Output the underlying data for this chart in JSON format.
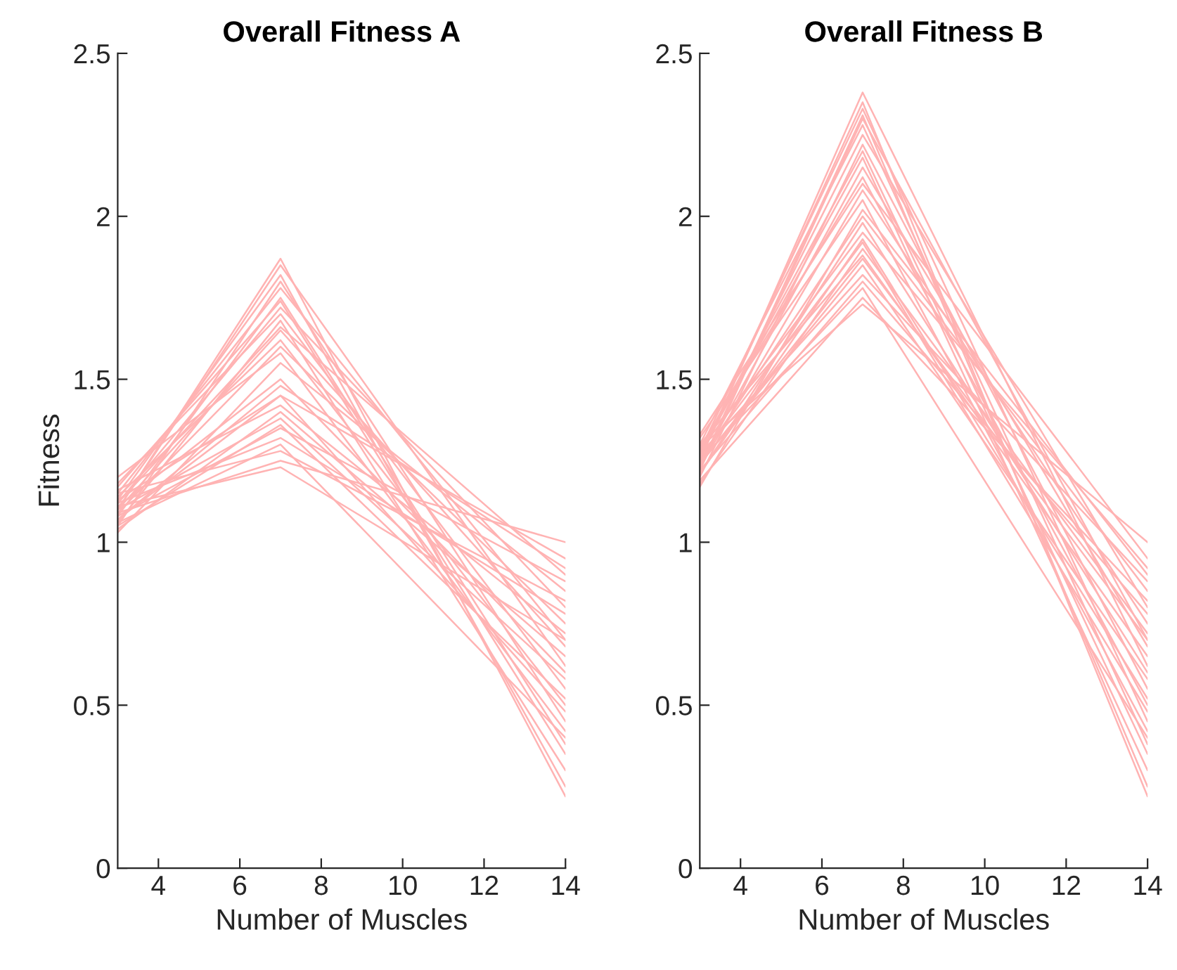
{
  "chart_data": [
    {
      "type": "line",
      "title": "Overall Fitness A",
      "xlabel": "Number of Muscles",
      "ylabel": "Fitness",
      "x": [
        3,
        7,
        14
      ],
      "xlim": [
        3,
        14
      ],
      "xticks": [
        4,
        6,
        8,
        10,
        12,
        14
      ],
      "ylim": [
        0,
        2.5
      ],
      "yticks": [
        0,
        0.5,
        1,
        1.5,
        2,
        2.5
      ],
      "grid": false,
      "line_style": "solid",
      "series": [
        {
          "color": "#ffb3b3",
          "values": [
            1.1,
            1.85,
            0.62
          ]
        },
        {
          "color": "#ffb3b3",
          "values": [
            1.05,
            1.8,
            0.45
          ]
        },
        {
          "color": "#ffb3b3",
          "values": [
            1.15,
            1.78,
            0.7
          ]
        },
        {
          "color": "#ffb3b3",
          "values": [
            1.08,
            1.75,
            0.38
          ]
        },
        {
          "color": "#ffb3b3",
          "values": [
            1.12,
            1.72,
            0.8
          ]
        },
        {
          "color": "#ffb3b3",
          "values": [
            1.18,
            1.7,
            0.55
          ]
        },
        {
          "color": "#ffb3b3",
          "values": [
            1.06,
            1.68,
            0.3
          ]
        },
        {
          "color": "#ffb3b3",
          "values": [
            1.1,
            1.65,
            0.68
          ]
        },
        {
          "color": "#ffb3b3",
          "values": [
            1.14,
            1.62,
            0.5
          ]
        },
        {
          "color": "#ffb3b3",
          "values": [
            1.09,
            1.6,
            0.75
          ]
        },
        {
          "color": "#ffb3b3",
          "values": [
            1.2,
            1.58,
            0.42
          ]
        },
        {
          "color": "#ffb3b3",
          "values": [
            1.03,
            1.55,
            0.85
          ]
        },
        {
          "color": "#ffb3b3",
          "values": [
            1.11,
            1.5,
            0.6
          ]
        },
        {
          "color": "#ffb3b3",
          "values": [
            1.07,
            1.48,
            0.92
          ]
        },
        {
          "color": "#ffb3b3",
          "values": [
            1.13,
            1.45,
            0.48
          ]
        },
        {
          "color": "#ffb3b3",
          "values": [
            1.16,
            1.42,
            0.72
          ]
        },
        {
          "color": "#ffb3b3",
          "values": [
            1.04,
            1.4,
            0.65
          ]
        },
        {
          "color": "#ffb3b3",
          "values": [
            1.1,
            1.38,
            0.58
          ]
        },
        {
          "color": "#ffb3b3",
          "values": [
            1.08,
            1.35,
            0.88
          ]
        },
        {
          "color": "#ffb3b3",
          "values": [
            1.12,
            1.32,
            0.78
          ]
        },
        {
          "color": "#ffb3b3",
          "values": [
            1.06,
            1.3,
            0.4
          ]
        },
        {
          "color": "#ffb3b3",
          "values": [
            1.15,
            1.28,
            0.82
          ]
        },
        {
          "color": "#ffb3b3",
          "values": [
            1.09,
            1.25,
            1.0
          ]
        },
        {
          "color": "#ffb3b3",
          "values": [
            1.11,
            1.23,
            0.7
          ]
        },
        {
          "color": "#ffb3b3",
          "values": [
            1.1,
            1.87,
            0.22
          ]
        },
        {
          "color": "#ffb3b3",
          "values": [
            1.13,
            1.82,
            0.25
          ]
        },
        {
          "color": "#ffb3b3",
          "values": [
            1.07,
            1.45,
            0.95
          ]
        },
        {
          "color": "#ffb3b3",
          "values": [
            1.05,
            1.36,
            0.52
          ]
        },
        {
          "color": "#ffb3b3",
          "values": [
            1.17,
            1.74,
            0.35
          ]
        },
        {
          "color": "#ffb3b3",
          "values": [
            1.12,
            1.66,
            0.9
          ]
        }
      ]
    },
    {
      "type": "line",
      "title": "Overall Fitness B",
      "xlabel": "Number of Muscles",
      "x": [
        3,
        7,
        14
      ],
      "xlim": [
        3,
        14
      ],
      "xticks": [
        4,
        6,
        8,
        10,
        12,
        14
      ],
      "ylim": [
        0,
        2.5
      ],
      "yticks": [
        0,
        0.5,
        1,
        1.5,
        2,
        2.5
      ],
      "grid": false,
      "line_style": "solid",
      "series": [
        {
          "color": "#ffb3b3",
          "values": [
            1.25,
            2.38,
            0.62
          ]
        },
        {
          "color": "#ffb3b3",
          "values": [
            1.28,
            2.33,
            0.45
          ]
        },
        {
          "color": "#ffb3b3",
          "values": [
            1.22,
            2.3,
            0.7
          ]
        },
        {
          "color": "#ffb3b3",
          "values": [
            1.3,
            2.28,
            0.38
          ]
        },
        {
          "color": "#ffb3b3",
          "values": [
            1.26,
            2.25,
            0.8
          ]
        },
        {
          "color": "#ffb3b3",
          "values": [
            1.2,
            2.22,
            0.55
          ]
        },
        {
          "color": "#ffb3b3",
          "values": [
            1.27,
            2.18,
            0.3
          ]
        },
        {
          "color": "#ffb3b3",
          "values": [
            1.24,
            2.15,
            0.68
          ]
        },
        {
          "color": "#ffb3b3",
          "values": [
            1.29,
            2.12,
            0.5
          ]
        },
        {
          "color": "#ffb3b3",
          "values": [
            1.23,
            2.08,
            0.75
          ]
        },
        {
          "color": "#ffb3b3",
          "values": [
            1.32,
            2.05,
            0.42
          ]
        },
        {
          "color": "#ffb3b3",
          "values": [
            1.25,
            2.0,
            0.85
          ]
        },
        {
          "color": "#ffb3b3",
          "values": [
            1.21,
            1.98,
            0.6
          ]
        },
        {
          "color": "#ffb3b3",
          "values": [
            1.28,
            1.95,
            0.92
          ]
        },
        {
          "color": "#ffb3b3",
          "values": [
            1.26,
            1.92,
            0.48
          ]
        },
        {
          "color": "#ffb3b3",
          "values": [
            1.18,
            1.9,
            0.72
          ]
        },
        {
          "color": "#ffb3b3",
          "values": [
            1.3,
            1.88,
            0.65
          ]
        },
        {
          "color": "#ffb3b3",
          "values": [
            1.24,
            1.85,
            0.58
          ]
        },
        {
          "color": "#ffb3b3",
          "values": [
            1.27,
            1.82,
            0.88
          ]
        },
        {
          "color": "#ffb3b3",
          "values": [
            1.22,
            1.8,
            0.78
          ]
        },
        {
          "color": "#ffb3b3",
          "values": [
            1.25,
            1.78,
            0.4
          ]
        },
        {
          "color": "#ffb3b3",
          "values": [
            1.19,
            1.75,
            0.82
          ]
        },
        {
          "color": "#ffb3b3",
          "values": [
            1.29,
            1.73,
            1.0
          ]
        },
        {
          "color": "#ffb3b3",
          "values": [
            1.26,
            2.35,
            0.22
          ]
        },
        {
          "color": "#ffb3b3",
          "values": [
            1.23,
            2.31,
            0.25
          ]
        },
        {
          "color": "#ffb3b3",
          "values": [
            1.33,
            2.1,
            0.95
          ]
        },
        {
          "color": "#ffb3b3",
          "values": [
            1.21,
            1.93,
            0.52
          ]
        },
        {
          "color": "#ffb3b3",
          "values": [
            1.28,
            2.2,
            0.35
          ]
        },
        {
          "color": "#ffb3b3",
          "values": [
            1.17,
            2.02,
            0.9
          ]
        },
        {
          "color": "#ffb3b3",
          "values": [
            1.24,
            1.87,
            0.7
          ]
        }
      ]
    }
  ]
}
